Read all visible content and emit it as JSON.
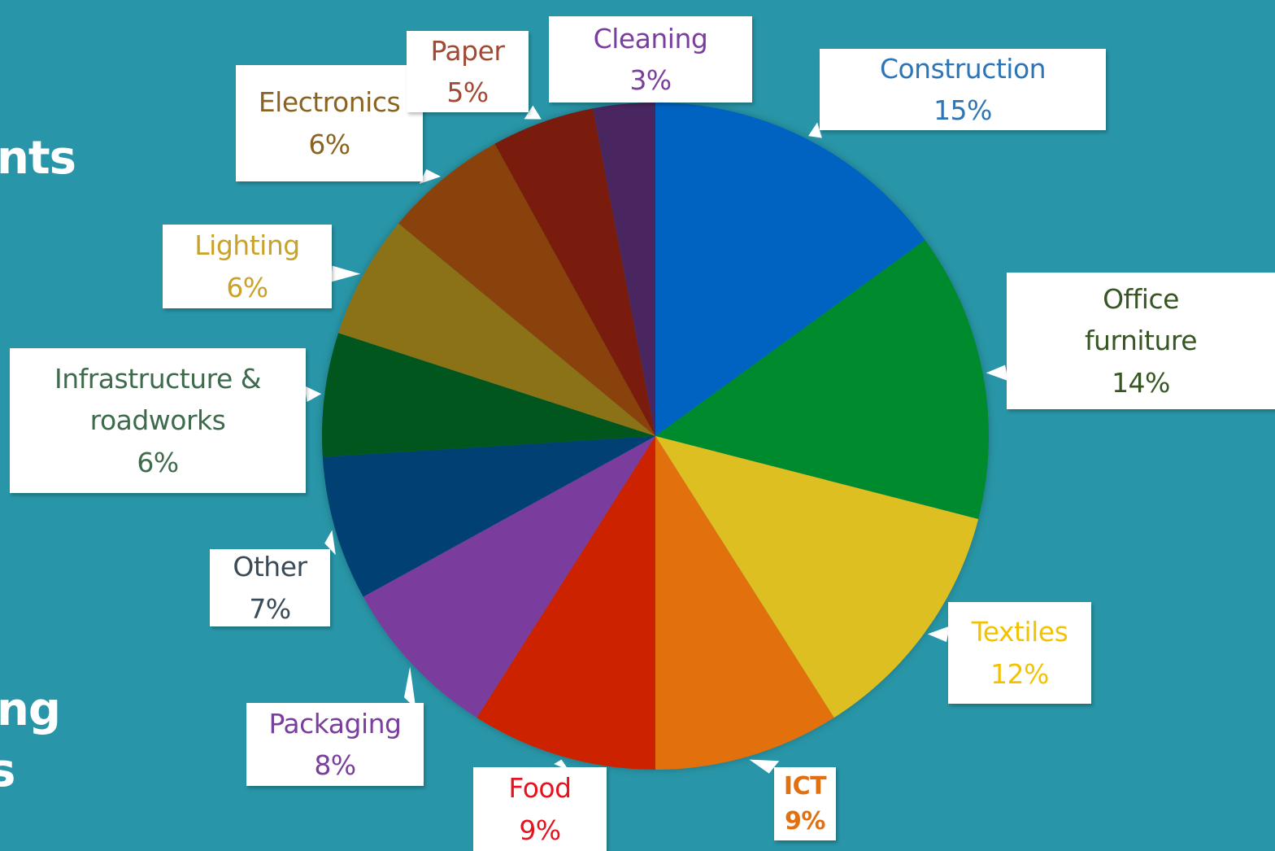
{
  "background_text": [
    "nts",
    "ng",
    "s"
  ],
  "chart_data": {
    "type": "pie",
    "title": "",
    "slices": [
      {
        "label": "Construction",
        "pct_text": "15%",
        "value": 15,
        "color": "#0563c1",
        "text_color": "#2e75b6"
      },
      {
        "label": "Office furniture",
        "pct_text": "14%",
        "value": 14,
        "color": "#008a2e",
        "text_color": "#375623"
      },
      {
        "label": "Textiles",
        "pct_text": "12%",
        "value": 12,
        "color": "#ddbf23",
        "text_color": "#f2c300"
      },
      {
        "label": "ICT",
        "pct_text": "9%",
        "value": 9,
        "color": "#e2700f",
        "text_color": "#e2700f"
      },
      {
        "label": "Food",
        "pct_text": "9%",
        "value": 9,
        "color": "#cc2200",
        "text_color": "#e8111e"
      },
      {
        "label": "Packaging",
        "pct_text": "8%",
        "value": 8,
        "color": "#7a3e9e",
        "text_color": "#7a3e9e"
      },
      {
        "label": "Other",
        "pct_text": "7%",
        "value": 7,
        "color": "#053f73",
        "text_color": "#3a4a57"
      },
      {
        "label": "Infrastructure & roadworks",
        "pct_text": "6%",
        "value": 6,
        "color": "#04561f",
        "text_color": "#3d6b4c"
      },
      {
        "label": "Lighting",
        "pct_text": "6%",
        "value": 6,
        "color": "#8c7217",
        "text_color": "#c9a227"
      },
      {
        "label": "Electronics",
        "pct_text": "6%",
        "value": 6,
        "color": "#8a420b",
        "text_color": "#8a6320"
      },
      {
        "label": "Paper",
        "pct_text": "5%",
        "value": 5,
        "color": "#7a1b07",
        "text_color": "#a04a35"
      },
      {
        "label": "Cleaning",
        "pct_text": "3%",
        "value": 3,
        "color": "#4a275f",
        "text_color": "#7a3e9e"
      }
    ]
  }
}
